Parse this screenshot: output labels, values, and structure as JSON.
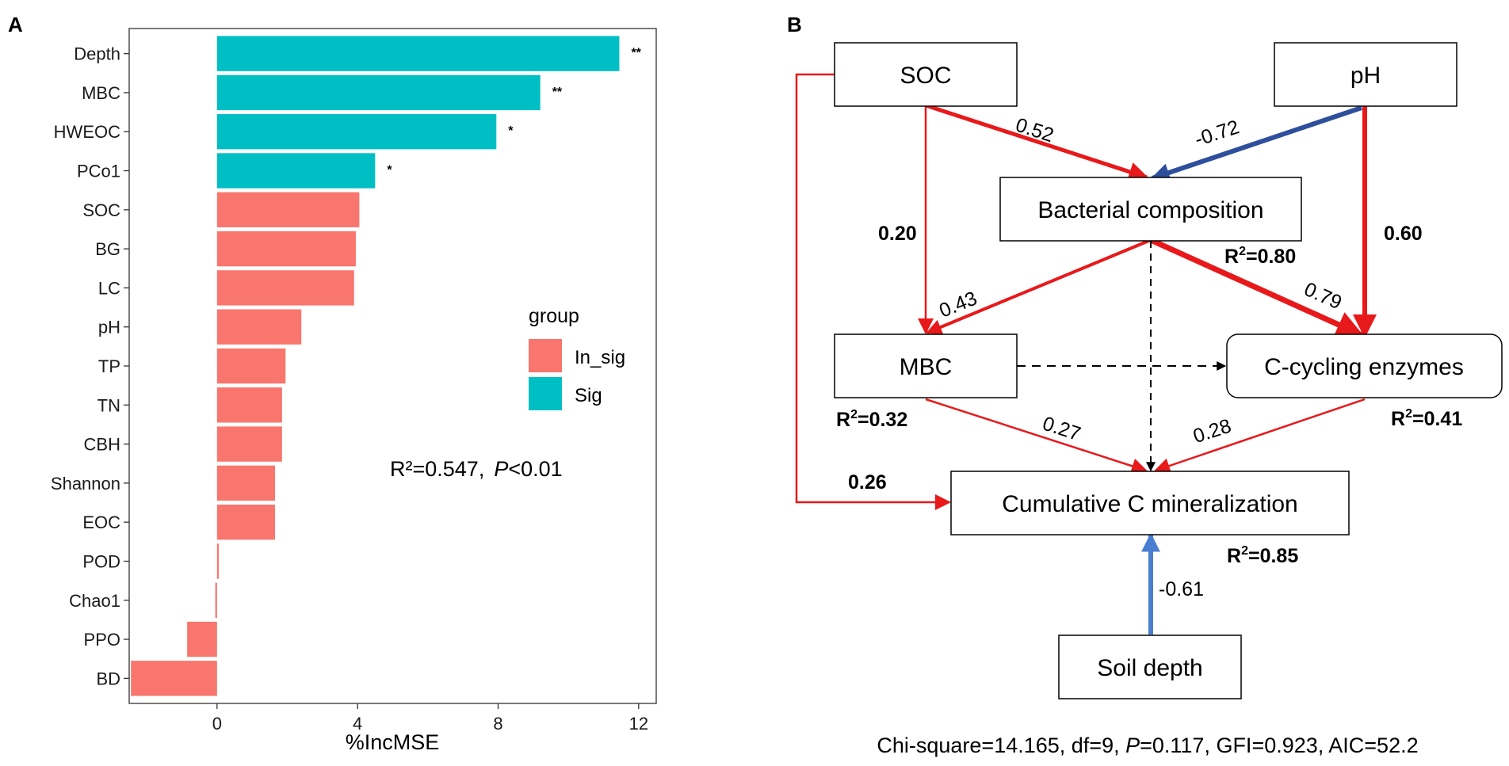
{
  "panel_a": {
    "label": "A",
    "legend": {
      "title": "group",
      "items": [
        {
          "name": "In_sig",
          "color": "#F8766D"
        },
        {
          "name": "Sig",
          "color": "#00BFC4"
        }
      ]
    },
    "stat": {
      "r2_text": "R²=0.547,",
      "p_italic": "P",
      "p_rest": "<0.01"
    }
  },
  "panel_b": {
    "label": "B",
    "nodes": {
      "soc": "SOC",
      "ph": "pH",
      "bacterial": "Bacterial composition",
      "mbc": "MBC",
      "enzymes": "C-cycling enzymes",
      "mineral": "Cumulative C mineralization",
      "depth": "Soil depth"
    },
    "paths": {
      "soc_bact": "0.52",
      "ph_bact": "-0.72",
      "soc_mbc": "0.20",
      "ph_enz": "0.60",
      "bact_mbc": "0.43",
      "bact_enz": "0.79",
      "mbc_min": "0.27",
      "enz_min": "0.28",
      "soc_min": "0.26",
      "depth_min": "-0.61"
    },
    "r2": {
      "bacterial": {
        "prefix": "R",
        "sup": "2",
        "value": "=0.80"
      },
      "mbc": {
        "prefix": "R",
        "sup": "2",
        "value": "=0.32"
      },
      "enzymes": {
        "prefix": "R",
        "sup": "2",
        "value": "=0.41"
      },
      "mineral": {
        "prefix": "R",
        "sup": "2",
        "value": "=0.85"
      }
    },
    "fit": {
      "pre": "Chi-square=14.165, df=9, ",
      "p": "P",
      "post": "=0.117, GFI=0.923, AIC=52.2"
    },
    "colors": {
      "positive": "#E8191B",
      "negative": "#2E4F9C",
      "negative_light": "#4A7ED0",
      "nonsig": "#000000"
    }
  },
  "chart_data": {
    "type": "bar",
    "orientation": "horizontal",
    "title": "",
    "xlabel": "%IncMSE",
    "ylabel": "",
    "xlim": [
      -2.5,
      12.5
    ],
    "xticks": [
      0,
      4,
      8,
      12
    ],
    "categories": [
      "Depth",
      "MBC",
      "HWEOC",
      "PCo1",
      "SOC",
      "BG",
      "LC",
      "pH",
      "TP",
      "TN",
      "CBH",
      "Shannon",
      "EOC",
      "POD",
      "Chao1",
      "PPO",
      "BD"
    ],
    "values": [
      11.45,
      9.2,
      7.95,
      4.5,
      4.05,
      3.95,
      3.9,
      2.4,
      1.95,
      1.85,
      1.85,
      1.65,
      1.65,
      0.05,
      -0.05,
      -0.85,
      -2.45
    ],
    "groups": [
      "Sig",
      "Sig",
      "Sig",
      "Sig",
      "In_sig",
      "In_sig",
      "In_sig",
      "In_sig",
      "In_sig",
      "In_sig",
      "In_sig",
      "In_sig",
      "In_sig",
      "In_sig",
      "In_sig",
      "In_sig",
      "In_sig"
    ],
    "significance": [
      "**",
      "**",
      "*",
      "*",
      "",
      "",
      "",
      "",
      "",
      "",
      "",
      "",
      "",
      "",
      "",
      "",
      ""
    ],
    "legend_title": "group"
  }
}
